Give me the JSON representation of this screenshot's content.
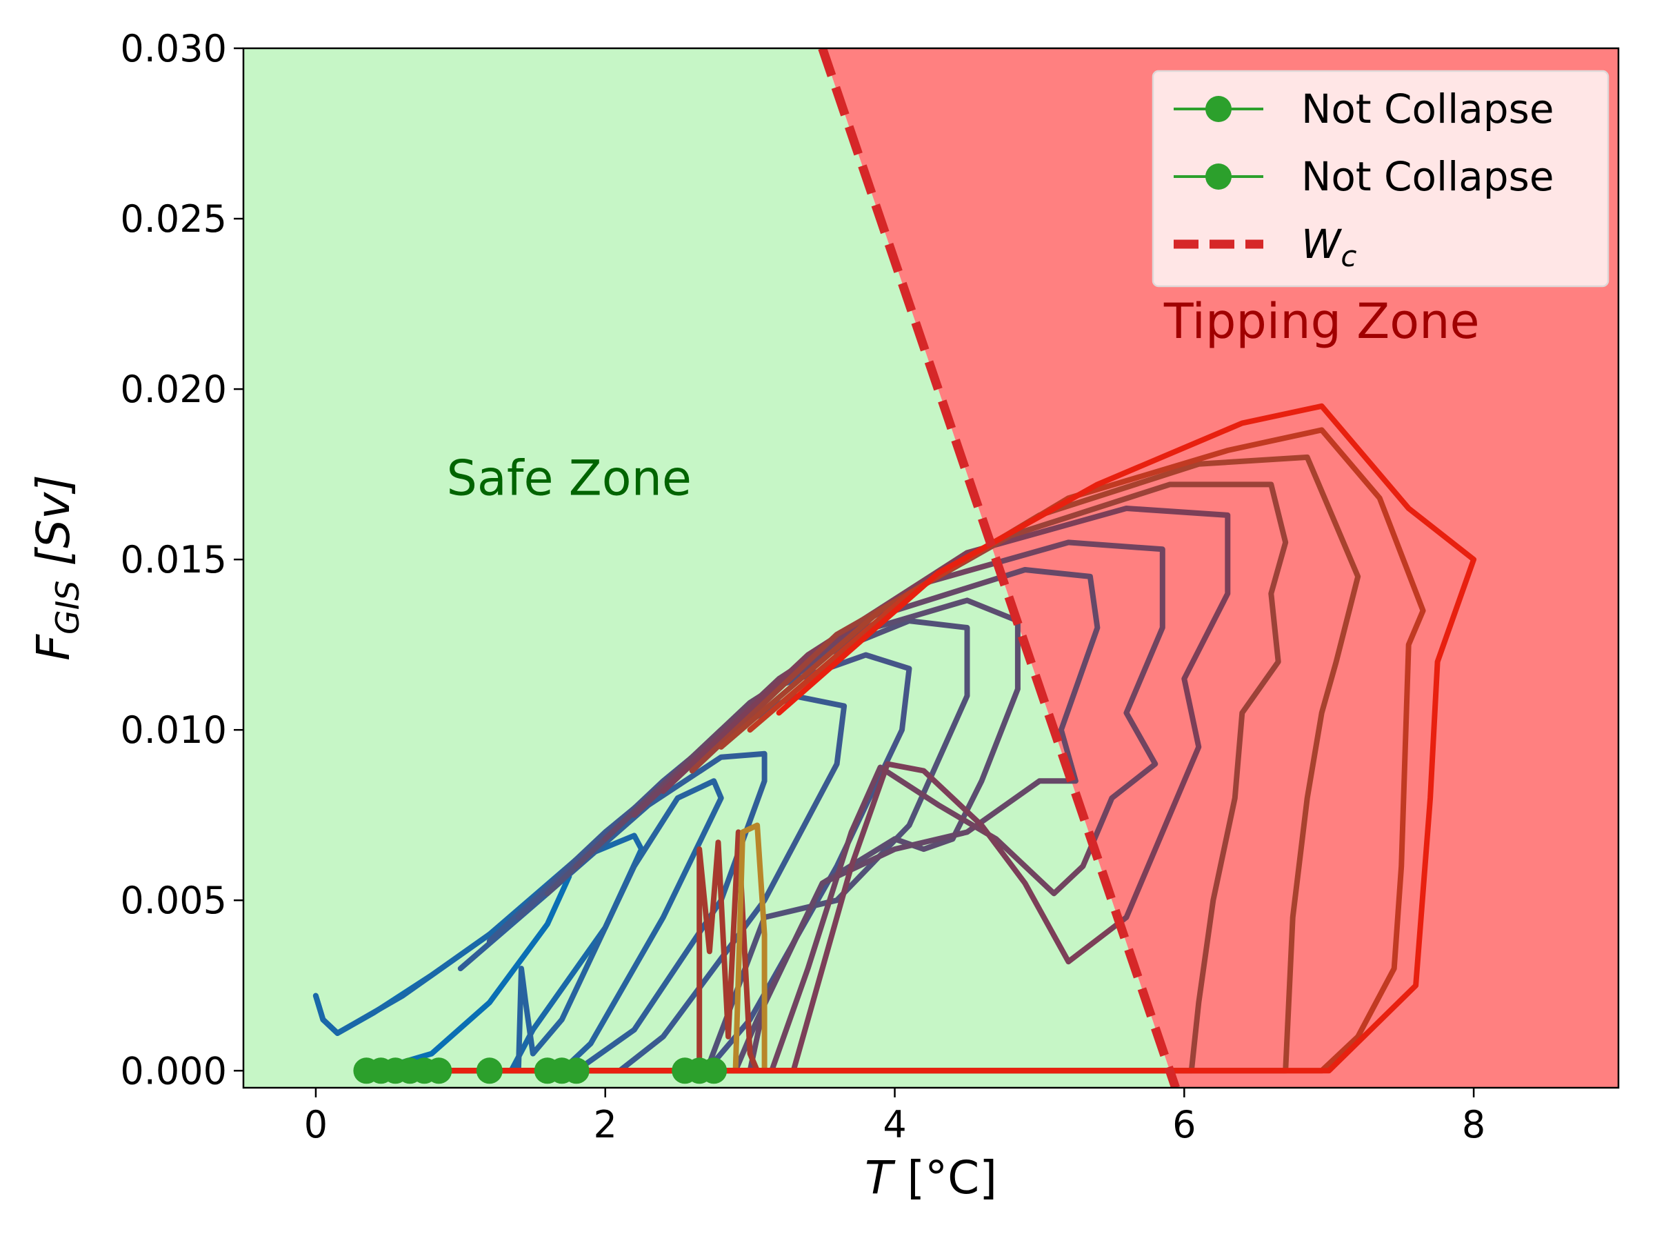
{
  "chart_data": {
    "type": "line",
    "title": "",
    "xlabel": "T [°C]",
    "ylabel": "F_GIS [Sv]",
    "xlim": [
      -0.5,
      9.0
    ],
    "ylim": [
      -0.0005,
      0.03
    ],
    "x_ticks": [
      0,
      2,
      4,
      6,
      8
    ],
    "x_tick_labels": [
      "0",
      "2",
      "4",
      "6",
      "8"
    ],
    "y_ticks": [
      0.0,
      0.005,
      0.01,
      0.015,
      0.02,
      0.025,
      0.03
    ],
    "y_tick_labels": [
      "0.000",
      "0.005",
      "0.010",
      "0.015",
      "0.020",
      "0.025",
      "0.030"
    ],
    "grid": false,
    "legend_position": "top-right",
    "legend": [
      {
        "label": "Not Collapse",
        "style": "line-marker",
        "color": "#2ca02c"
      },
      {
        "label": "Not Collapse",
        "style": "line-marker",
        "color": "#2ca02c"
      },
      {
        "label": "W",
        "subscript": "c",
        "style": "dashed",
        "color": "#d62728"
      }
    ],
    "zones": {
      "safe": {
        "label": "Safe Zone",
        "fill": "#c6f6c6",
        "text_color": "#006400",
        "text_pos": [
          1.75,
          0.0169
        ]
      },
      "tipping": {
        "label": "Tipping Zone",
        "fill": "#ff8080",
        "text_color": "#a00000",
        "text_pos": [
          6.95,
          0.0215
        ]
      }
    },
    "critical_line": {
      "name": "W_c",
      "points": [
        [
          3.5,
          0.03
        ],
        [
          5.9,
          0.0
        ]
      ],
      "color": "#d62728"
    },
    "start_markers": {
      "color": "#2ca02c",
      "y": 0.0,
      "x": [
        0.35,
        0.45,
        0.55,
        0.65,
        0.75,
        0.85,
        1.2,
        1.6,
        1.7,
        1.8,
        2.55,
        2.65,
        2.75
      ]
    },
    "series": [
      {
        "color": "#0a6fb4",
        "points": [
          [
            0.0,
            0.0022
          ],
          [
            0.05,
            0.0015
          ],
          [
            0.15,
            0.0011
          ],
          [
            0.4,
            0.0017
          ],
          [
            0.8,
            0.0028
          ],
          [
            1.2,
            0.004
          ],
          [
            1.6,
            0.0054
          ],
          [
            1.75,
            0.0057
          ],
          [
            1.6,
            0.0043
          ],
          [
            1.2,
            0.002
          ],
          [
            0.8,
            0.0005
          ],
          [
            0.4,
            0.0
          ],
          [
            0.35,
            0.0
          ]
        ]
      },
      {
        "color": "#1a68a8",
        "points": [
          [
            0.0,
            0.0022
          ],
          [
            0.05,
            0.0015
          ],
          [
            0.15,
            0.0011
          ],
          [
            0.6,
            0.0022
          ],
          [
            1.2,
            0.004
          ],
          [
            1.8,
            0.0062
          ],
          [
            2.2,
            0.0069
          ],
          [
            2.25,
            0.0065
          ],
          [
            2.0,
            0.0042
          ],
          [
            1.5,
            0.0012
          ],
          [
            1.35,
            0.0
          ],
          [
            0.45,
            0.0
          ]
        ]
      },
      {
        "color": "#27639f",
        "points": [
          [
            1.4,
            0.0
          ],
          [
            1.42,
            0.003
          ],
          [
            1.45,
            0.002
          ],
          [
            1.5,
            0.0005
          ],
          [
            1.7,
            0.0015
          ],
          [
            2.2,
            0.006
          ],
          [
            2.5,
            0.008
          ],
          [
            2.75,
            0.0085
          ],
          [
            2.8,
            0.008
          ],
          [
            2.4,
            0.0045
          ],
          [
            1.9,
            0.0008
          ],
          [
            1.7,
            0.0
          ],
          [
            0.55,
            0.0
          ]
        ]
      },
      {
        "color": "#305e98",
        "points": [
          [
            1.0,
            0.003
          ],
          [
            1.6,
            0.0052
          ],
          [
            2.3,
            0.0078
          ],
          [
            2.8,
            0.0092
          ],
          [
            3.1,
            0.0093
          ],
          [
            3.1,
            0.0085
          ],
          [
            2.8,
            0.005
          ],
          [
            2.2,
            0.0012
          ],
          [
            1.8,
            0.0
          ],
          [
            0.65,
            0.0
          ]
        ]
      },
      {
        "color": "#3a5a90",
        "points": [
          [
            1.2,
            0.0038
          ],
          [
            2.0,
            0.007
          ],
          [
            2.8,
            0.0098
          ],
          [
            3.3,
            0.011
          ],
          [
            3.65,
            0.0107
          ],
          [
            3.6,
            0.009
          ],
          [
            3.1,
            0.005
          ],
          [
            2.4,
            0.001
          ],
          [
            2.1,
            0.0
          ],
          [
            0.75,
            0.0
          ]
        ]
      },
      {
        "color": "#455588",
        "points": [
          [
            1.4,
            0.0045
          ],
          [
            2.4,
            0.0085
          ],
          [
            3.2,
            0.0113
          ],
          [
            3.8,
            0.0122
          ],
          [
            4.1,
            0.0118
          ],
          [
            4.05,
            0.01
          ],
          [
            3.6,
            0.006
          ],
          [
            3.0,
            0.0015
          ],
          [
            2.7,
            0.0
          ],
          [
            0.85,
            0.0
          ]
        ]
      },
      {
        "color": "#525178",
        "points": [
          [
            1.6,
            0.0052
          ],
          [
            2.6,
            0.0092
          ],
          [
            3.4,
            0.012
          ],
          [
            4.1,
            0.0132
          ],
          [
            4.5,
            0.013
          ],
          [
            4.5,
            0.011
          ],
          [
            4.1,
            0.0072
          ],
          [
            3.6,
            0.005
          ],
          [
            3.1,
            0.0045
          ],
          [
            2.7,
            0.0
          ],
          [
            1.2,
            0.0
          ]
        ]
      },
      {
        "color": "#5c4d70",
        "points": [
          [
            1.8,
            0.006
          ],
          [
            2.8,
            0.01
          ],
          [
            3.7,
            0.0128
          ],
          [
            4.5,
            0.0138
          ],
          [
            4.85,
            0.0132
          ],
          [
            4.85,
            0.0112
          ],
          [
            4.6,
            0.0085
          ],
          [
            4.4,
            0.0068
          ],
          [
            4.2,
            0.0065
          ],
          [
            4.0,
            0.0068
          ],
          [
            3.5,
            0.0055
          ],
          [
            3.05,
            0.0015
          ],
          [
            2.9,
            0.0
          ],
          [
            1.6,
            0.0
          ]
        ]
      },
      {
        "color": "#664868",
        "points": [
          [
            2.0,
            0.0068
          ],
          [
            3.0,
            0.0108
          ],
          [
            4.0,
            0.0135
          ],
          [
            4.9,
            0.0147
          ],
          [
            5.35,
            0.0145
          ],
          [
            5.4,
            0.013
          ],
          [
            5.15,
            0.01
          ],
          [
            5.25,
            0.0085
          ],
          [
            5.0,
            0.0085
          ],
          [
            4.5,
            0.007
          ],
          [
            4.0,
            0.0065
          ],
          [
            3.5,
            0.0055
          ],
          [
            3.1,
            0.002
          ],
          [
            3.0,
            0.0
          ],
          [
            1.7,
            0.0
          ]
        ]
      },
      {
        "color": "#714460",
        "points": [
          [
            2.2,
            0.0075
          ],
          [
            3.2,
            0.0115
          ],
          [
            4.2,
            0.0143
          ],
          [
            5.2,
            0.0155
          ],
          [
            5.85,
            0.0153
          ],
          [
            5.85,
            0.013
          ],
          [
            5.6,
            0.0105
          ],
          [
            5.8,
            0.009
          ],
          [
            5.5,
            0.008
          ],
          [
            5.3,
            0.006
          ],
          [
            5.1,
            0.0052
          ],
          [
            4.7,
            0.0068
          ],
          [
            4.3,
            0.0078
          ],
          [
            3.9,
            0.0089
          ],
          [
            3.7,
            0.007
          ],
          [
            3.4,
            0.003
          ],
          [
            3.15,
            0.0
          ],
          [
            1.8,
            0.0
          ]
        ]
      },
      {
        "color": "#7c3f58",
        "points": [
          [
            2.4,
            0.0082
          ],
          [
            3.4,
            0.0122
          ],
          [
            4.5,
            0.0152
          ],
          [
            5.6,
            0.0165
          ],
          [
            6.3,
            0.0163
          ],
          [
            6.3,
            0.014
          ],
          [
            6.0,
            0.0115
          ],
          [
            6.1,
            0.0095
          ],
          [
            5.9,
            0.0075
          ],
          [
            5.6,
            0.0045
          ],
          [
            5.2,
            0.0032
          ],
          [
            4.9,
            0.0055
          ],
          [
            4.6,
            0.0072
          ],
          [
            4.2,
            0.0088
          ],
          [
            3.95,
            0.009
          ],
          [
            3.7,
            0.006
          ],
          [
            3.3,
            0.0
          ],
          [
            2.55,
            0.0
          ]
        ]
      },
      {
        "color": "#a63a2e",
        "points": [
          [
            2.65,
            0.0
          ],
          [
            2.65,
            0.0065
          ],
          [
            2.72,
            0.0035
          ],
          [
            2.78,
            0.0067
          ],
          [
            2.85,
            0.001
          ],
          [
            2.92,
            0.007
          ],
          [
            3.0,
            0.0005
          ],
          [
            3.05,
            0.0
          ],
          [
            2.65,
            0.0
          ]
        ]
      },
      {
        "color": "#b8862a",
        "points": [
          [
            2.9,
            0.0
          ],
          [
            2.95,
            0.007
          ],
          [
            3.05,
            0.0072
          ],
          [
            3.1,
            0.004
          ],
          [
            3.1,
            0.0
          ]
        ]
      },
      {
        "color": "#9c4238",
        "points": [
          [
            2.6,
            0.0088
          ],
          [
            3.6,
            0.0128
          ],
          [
            4.8,
            0.0157
          ],
          [
            5.9,
            0.0172
          ],
          [
            6.6,
            0.0172
          ],
          [
            6.7,
            0.0155
          ],
          [
            6.6,
            0.014
          ],
          [
            6.65,
            0.012
          ],
          [
            6.4,
            0.0105
          ],
          [
            6.35,
            0.008
          ],
          [
            6.2,
            0.005
          ],
          [
            6.1,
            0.002
          ],
          [
            6.05,
            0.0
          ],
          [
            0.35,
            0.0
          ]
        ]
      },
      {
        "color": "#a8422e",
        "points": [
          [
            2.8,
            0.0095
          ],
          [
            3.9,
            0.0135
          ],
          [
            5.0,
            0.0163
          ],
          [
            6.1,
            0.0178
          ],
          [
            6.85,
            0.018
          ],
          [
            7.05,
            0.016
          ],
          [
            7.2,
            0.0145
          ],
          [
            7.05,
            0.012
          ],
          [
            6.95,
            0.0105
          ],
          [
            6.85,
            0.008
          ],
          [
            6.75,
            0.0045
          ],
          [
            6.7,
            0.0
          ],
          [
            0.45,
            0.0
          ]
        ]
      },
      {
        "color": "#c13a22",
        "points": [
          [
            3.0,
            0.01
          ],
          [
            4.1,
            0.014
          ],
          [
            5.2,
            0.0168
          ],
          [
            6.3,
            0.0182
          ],
          [
            6.95,
            0.0188
          ],
          [
            7.35,
            0.0168
          ],
          [
            7.65,
            0.0135
          ],
          [
            7.55,
            0.0125
          ],
          [
            7.5,
            0.006
          ],
          [
            7.45,
            0.003
          ],
          [
            7.2,
            0.001
          ],
          [
            6.95,
            0.0
          ],
          [
            0.55,
            0.0
          ]
        ]
      },
      {
        "color": "#e8200f",
        "points": [
          [
            3.2,
            0.0105
          ],
          [
            4.3,
            0.0146
          ],
          [
            5.4,
            0.0172
          ],
          [
            6.4,
            0.019
          ],
          [
            6.95,
            0.0195
          ],
          [
            7.55,
            0.0165
          ],
          [
            8.0,
            0.015
          ],
          [
            7.75,
            0.012
          ],
          [
            7.7,
            0.008
          ],
          [
            7.6,
            0.0025
          ],
          [
            7.0,
            0.0
          ],
          [
            0.35,
            0.0
          ]
        ]
      }
    ]
  }
}
